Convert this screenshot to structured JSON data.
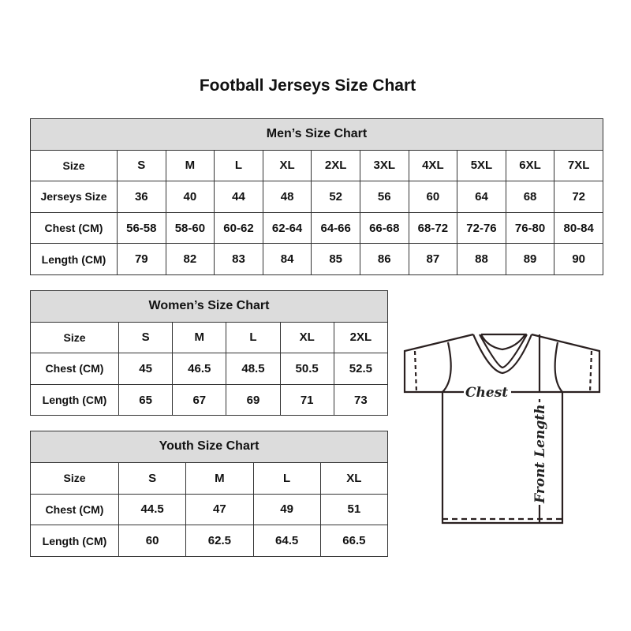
{
  "title": "Football Jerseys Size Chart",
  "men": {
    "heading": "Men’s Size Chart",
    "rows": [
      {
        "label": "Size",
        "values": [
          "S",
          "M",
          "L",
          "XL",
          "2XL",
          "3XL",
          "4XL",
          "5XL",
          "6XL",
          "7XL"
        ]
      },
      {
        "label": "Jerseys Size",
        "values": [
          "36",
          "40",
          "44",
          "48",
          "52",
          "56",
          "60",
          "64",
          "68",
          "72"
        ]
      },
      {
        "label": "Chest (CM)",
        "values": [
          "56-58",
          "58-60",
          "60-62",
          "62-64",
          "64-66",
          "66-68",
          "68-72",
          "72-76",
          "76-80",
          "80-84"
        ]
      },
      {
        "label": "Length (CM)",
        "values": [
          "79",
          "82",
          "83",
          "84",
          "85",
          "86",
          "87",
          "88",
          "89",
          "90"
        ]
      }
    ]
  },
  "women": {
    "heading": "Women’s Size Chart",
    "rows": [
      {
        "label": "Size",
        "values": [
          "S",
          "M",
          "L",
          "XL",
          "2XL"
        ]
      },
      {
        "label": "Chest (CM)",
        "values": [
          "45",
          "46.5",
          "48.5",
          "50.5",
          "52.5"
        ]
      },
      {
        "label": "Length (CM)",
        "values": [
          "65",
          "67",
          "69",
          "71",
          "73"
        ]
      }
    ]
  },
  "youth": {
    "heading": "Youth Size Chart",
    "rows": [
      {
        "label": "Size",
        "values": [
          "S",
          "M",
          "L",
          "XL"
        ]
      },
      {
        "label": "Chest (CM)",
        "values": [
          "44.5",
          "47",
          "49",
          "51"
        ]
      },
      {
        "label": "Length (CM)",
        "values": [
          "60",
          "62.5",
          "64.5",
          "66.5"
        ]
      }
    ]
  },
  "diagram": {
    "chest_label": "Chest",
    "length_label": "Front Length"
  },
  "colors": {
    "header_bg": "#dcdcdc",
    "border": "#333333"
  }
}
